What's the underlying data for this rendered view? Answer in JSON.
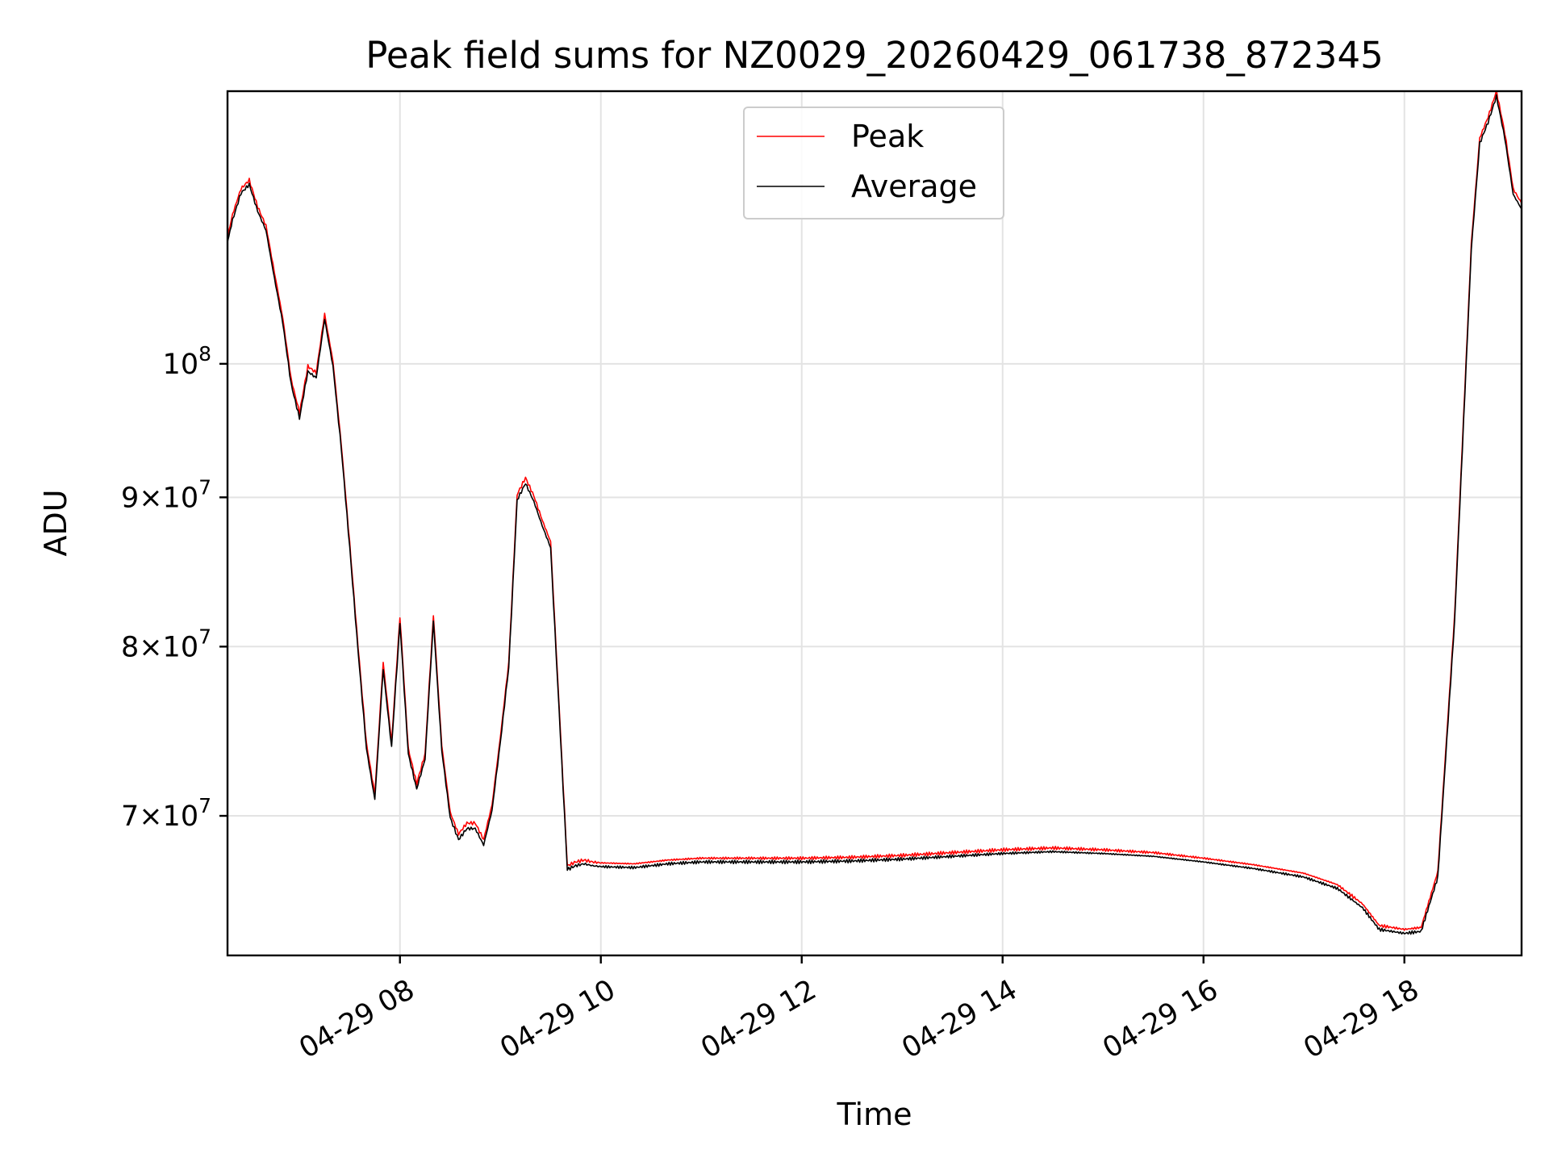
{
  "chart_data": {
    "type": "line",
    "title": "Peak field sums for NZ0029_20260429_061738_872345",
    "xlabel": "Time",
    "ylabel": "ADU",
    "yscale": "log",
    "xlim": [
      "2026-04-29 06:17",
      "2026-04-29 19:10"
    ],
    "ylim": [
      62700000,
      124000000
    ],
    "grid": true,
    "legend": {
      "placement": "top-center"
    },
    "x_ticks": [
      {
        "value": "2026-04-29 08:00",
        "label": "04-29 08"
      },
      {
        "value": "2026-04-29 10:00",
        "label": "04-29 10"
      },
      {
        "value": "2026-04-29 12:00",
        "label": "04-29 12"
      },
      {
        "value": "2026-04-29 14:00",
        "label": "04-29 14"
      },
      {
        "value": "2026-04-29 16:00",
        "label": "04-29 16"
      },
      {
        "value": "2026-04-29 18:00",
        "label": "04-29 18"
      }
    ],
    "y_ticks": [
      {
        "value": 70000000,
        "mantissa": "7",
        "base": "10",
        "exp": "7"
      },
      {
        "value": 80000000,
        "mantissa": "8",
        "base": "10",
        "exp": "7"
      },
      {
        "value": 90000000,
        "mantissa": "9",
        "base": "10",
        "exp": "7"
      },
      {
        "value": 100000000,
        "mantissa": "",
        "base": "10",
        "exp": "8"
      }
    ],
    "x": [
      "2026-04-29 06:17",
      "2026-04-29 06:20",
      "2026-04-29 06:25",
      "2026-04-29 06:30",
      "2026-04-29 06:35",
      "2026-04-29 06:40",
      "2026-04-29 06:45",
      "2026-04-29 06:50",
      "2026-04-29 06:55",
      "2026-04-29 07:00",
      "2026-04-29 07:05",
      "2026-04-29 07:10",
      "2026-04-29 07:15",
      "2026-04-29 07:20",
      "2026-04-29 07:25",
      "2026-04-29 07:30",
      "2026-04-29 07:35",
      "2026-04-29 07:40",
      "2026-04-29 07:45",
      "2026-04-29 07:50",
      "2026-04-29 07:55",
      "2026-04-29 08:00",
      "2026-04-29 08:05",
      "2026-04-29 08:10",
      "2026-04-29 08:15",
      "2026-04-29 08:20",
      "2026-04-29 08:25",
      "2026-04-29 08:30",
      "2026-04-29 08:35",
      "2026-04-29 08:40",
      "2026-04-29 08:45",
      "2026-04-29 08:50",
      "2026-04-29 08:55",
      "2026-04-29 09:00",
      "2026-04-29 09:05",
      "2026-04-29 09:10",
      "2026-04-29 09:15",
      "2026-04-29 09:20",
      "2026-04-29 09:25",
      "2026-04-29 09:30",
      "2026-04-29 09:35",
      "2026-04-29 09:40",
      "2026-04-29 09:45",
      "2026-04-29 09:50",
      "2026-04-29 09:55",
      "2026-04-29 10:00",
      "2026-04-29 10:20",
      "2026-04-29 10:40",
      "2026-04-29 11:00",
      "2026-04-29 11:30",
      "2026-04-29 12:00",
      "2026-04-29 12:30",
      "2026-04-29 13:00",
      "2026-04-29 13:30",
      "2026-04-29 14:00",
      "2026-04-29 14:30",
      "2026-04-29 15:00",
      "2026-04-29 15:30",
      "2026-04-29 16:00",
      "2026-04-29 16:30",
      "2026-04-29 17:00",
      "2026-04-29 17:20",
      "2026-04-29 17:35",
      "2026-04-29 17:45",
      "2026-04-29 18:00",
      "2026-04-29 18:10",
      "2026-04-29 18:20",
      "2026-04-29 18:30",
      "2026-04-29 18:40",
      "2026-04-29 18:45",
      "2026-04-29 18:50",
      "2026-04-29 18:55",
      "2026-04-29 19:00",
      "2026-04-29 19:05",
      "2026-04-29 19:10"
    ],
    "series": [
      {
        "name": "Peak",
        "color": "#ff0000",
        "values": [
          110500000,
          112500000,
          114800000,
          115600000,
          113200000,
          111500000,
          107500000,
          103700000,
          98800000,
          96200000,
          99800000,
          99300000,
          104000000,
          100200000,
          93800000,
          86800000,
          80000000,
          74100000,
          71200000,
          79000000,
          74200000,
          81900000,
          73800000,
          71800000,
          73500000,
          82000000,
          74000000,
          70200000,
          69000000,
          69600000,
          69600000,
          68700000,
          70600000,
          74500000,
          79000000,
          90200000,
          91400000,
          90100000,
          88400000,
          86900000,
          76500000,
          67300000,
          67500000,
          67600000,
          67500000,
          67450000,
          67400000,
          67600000,
          67700000,
          67700000,
          67700000,
          67750000,
          67850000,
          68000000,
          68150000,
          68250000,
          68150000,
          68000000,
          67700000,
          67350000,
          66900000,
          66300000,
          65300000,
          64200000,
          64000000,
          64100000,
          67000000,
          82000000,
          110000000,
          119500000,
          121500000,
          124000000,
          120000000,
          114800000,
          113500000
        ]
      },
      {
        "name": "Average",
        "color": "#000000",
        "values": [
          110100000,
          112000000,
          114400000,
          115200000,
          112800000,
          111100000,
          107000000,
          103300000,
          98400000,
          95800000,
          99400000,
          98900000,
          103600000,
          99800000,
          93500000,
          86500000,
          79700000,
          73800000,
          70900000,
          78600000,
          73900000,
          81500000,
          73500000,
          71500000,
          73200000,
          81600000,
          73700000,
          69900000,
          68700000,
          69300000,
          69300000,
          68400000,
          70300000,
          74200000,
          78700000,
          89800000,
          91000000,
          89700000,
          88000000,
          86500000,
          76200000,
          67100000,
          67300000,
          67400000,
          67300000,
          67250000,
          67200000,
          67400000,
          67500000,
          67500000,
          67500000,
          67550000,
          67650000,
          67800000,
          67950000,
          68050000,
          67950000,
          67800000,
          67500000,
          67150000,
          66700000,
          66100000,
          65100000,
          64000000,
          63800000,
          63900000,
          66700000,
          81600000,
          109500000,
          119000000,
          121000000,
          123500000,
          119500000,
          114300000,
          113000000
        ]
      }
    ]
  }
}
